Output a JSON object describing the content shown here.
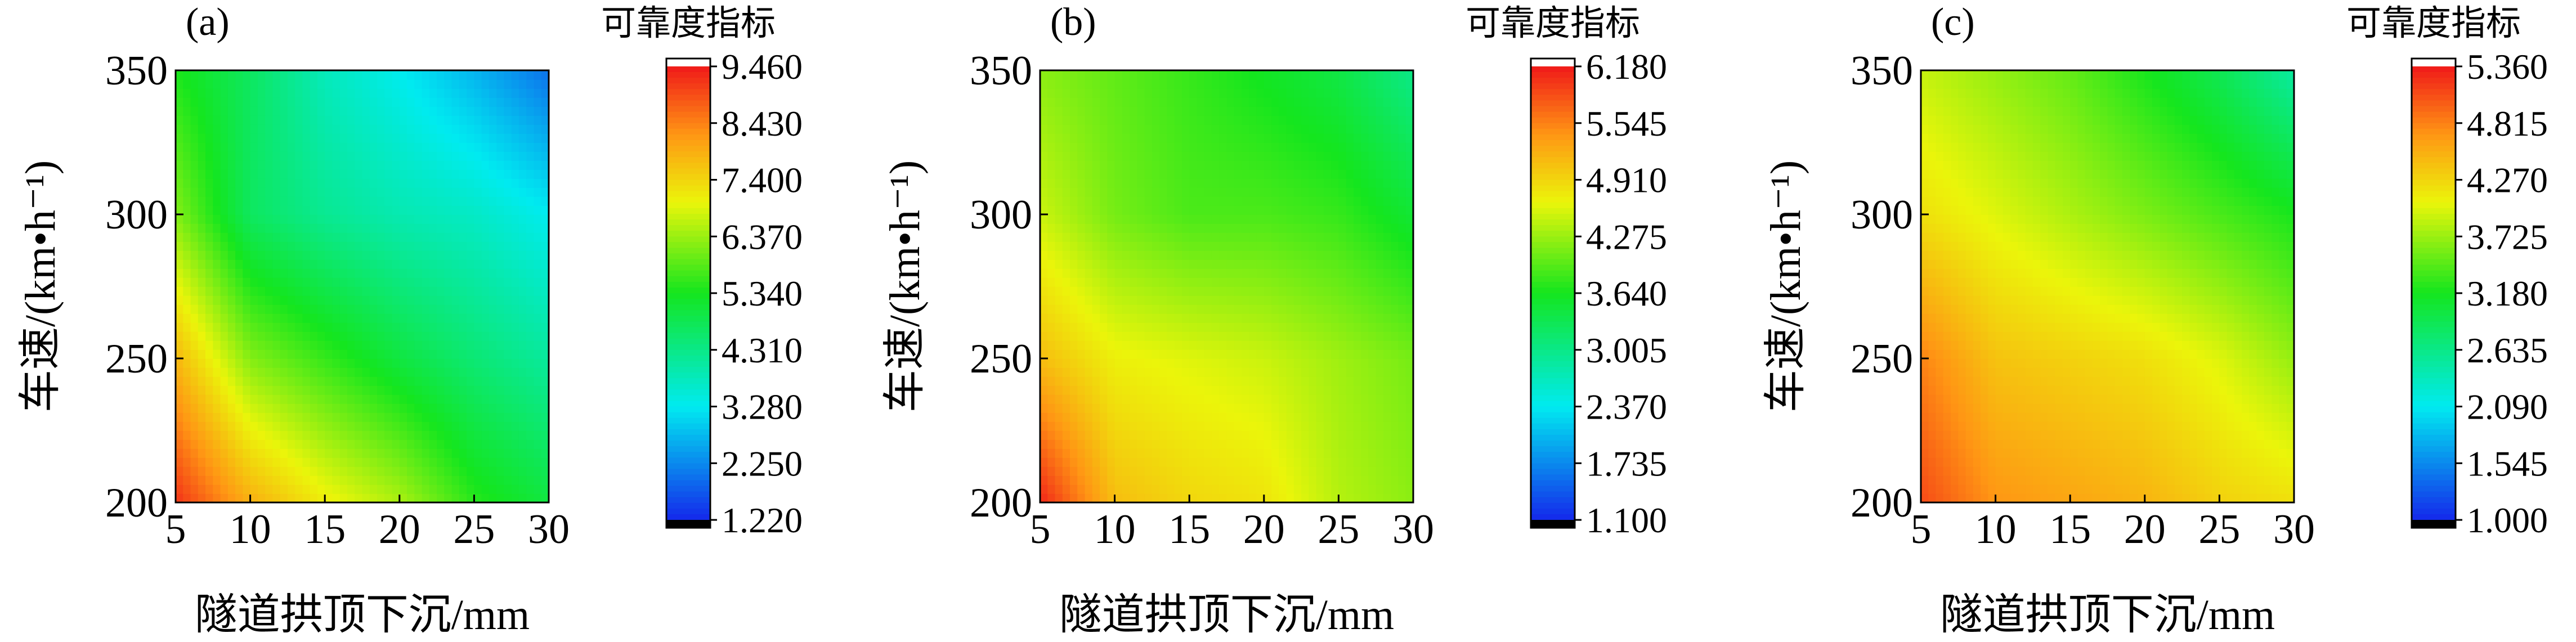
{
  "chart_data": [
    {
      "type": "heatmap",
      "panel_label": "(a)",
      "xlabel": "隧道拱顶下沉/mm",
      "ylabel": "车速/(km•h⁻¹)",
      "x_ticks": [
        "5",
        "10",
        "15",
        "20",
        "25",
        "30"
      ],
      "y_ticks": [
        "200",
        "250",
        "300",
        "350"
      ],
      "xlim": [
        5,
        30
      ],
      "ylim": [
        200,
        350
      ],
      "x": [
        5,
        10,
        15,
        20,
        25,
        30
      ],
      "y": [
        200,
        250,
        300,
        350
      ],
      "z": [
        [
          9.2,
          7.9,
          7.1,
          6.5,
          5.5,
          5.0
        ],
        [
          7.8,
          6.2,
          5.6,
          5.0,
          4.5,
          4.1
        ],
        [
          6.2,
          4.7,
          4.2,
          3.9,
          3.7,
          3.3
        ],
        [
          5.4,
          4.7,
          3.8,
          3.3,
          2.7,
          2.0
        ]
      ],
      "colorbar": {
        "title": "可靠度指标",
        "min": 1.22,
        "max": 9.46,
        "labels": [
          "9.460",
          "8.430",
          "7.400",
          "6.370",
          "5.340",
          "4.310",
          "3.280",
          "2.250",
          "1.220"
        ]
      }
    },
    {
      "type": "heatmap",
      "panel_label": "(b)",
      "xlabel": "隧道拱顶下沉/mm",
      "ylabel": "车速/(km•h⁻¹)",
      "x_ticks": [
        "5",
        "10",
        "15",
        "20",
        "25",
        "30"
      ],
      "y_ticks": [
        "200",
        "250",
        "300",
        "350"
      ],
      "xlim": [
        5,
        30
      ],
      "ylim": [
        200,
        350
      ],
      "x": [
        5,
        10,
        15,
        20,
        25,
        30
      ],
      "y": [
        200,
        250,
        300,
        350
      ],
      "z": [
        [
          6.1,
          5.1,
          4.9,
          4.8,
          4.4,
          4.2
        ],
        [
          5.1,
          4.7,
          4.6,
          4.5,
          4.3,
          4.1
        ],
        [
          4.5,
          4.1,
          3.9,
          3.9,
          3.8,
          3.5
        ],
        [
          4.2,
          4.0,
          3.8,
          3.6,
          3.4,
          3.0
        ]
      ],
      "colorbar": {
        "title": "可靠度指标",
        "min": 1.1,
        "max": 6.18,
        "labels": [
          "6.180",
          "5.545",
          "4.910",
          "4.275",
          "3.640",
          "3.005",
          "2.370",
          "1.735",
          "1.100"
        ]
      }
    },
    {
      "type": "heatmap",
      "panel_label": "(c)",
      "xlabel": "隧道拱顶下沉/mm",
      "ylabel": "车速/(km•h⁻¹)",
      "x_ticks": [
        "5",
        "10",
        "15",
        "20",
        "25",
        "30"
      ],
      "y_ticks": [
        "200",
        "250",
        "300",
        "350"
      ],
      "xlim": [
        5,
        30
      ],
      "ylim": [
        200,
        350
      ],
      "x": [
        5,
        10,
        15,
        20,
        25,
        30
      ],
      "y": [
        200,
        250,
        300,
        350
      ],
      "z": [
        [
          5.1,
          4.7,
          4.6,
          4.5,
          4.3,
          4.2
        ],
        [
          4.8,
          4.4,
          4.3,
          4.2,
          4.0,
          3.7
        ],
        [
          4.2,
          4.0,
          3.8,
          3.6,
          3.4,
          3.2
        ],
        [
          3.9,
          3.7,
          3.5,
          3.2,
          2.9,
          2.5
        ]
      ],
      "colorbar": {
        "title": "可靠度指标",
        "min": 1.0,
        "max": 5.36,
        "labels": [
          "5.360",
          "4.815",
          "4.270",
          "3.725",
          "3.180",
          "2.635",
          "2.090",
          "1.545",
          "1.000"
        ]
      }
    }
  ]
}
